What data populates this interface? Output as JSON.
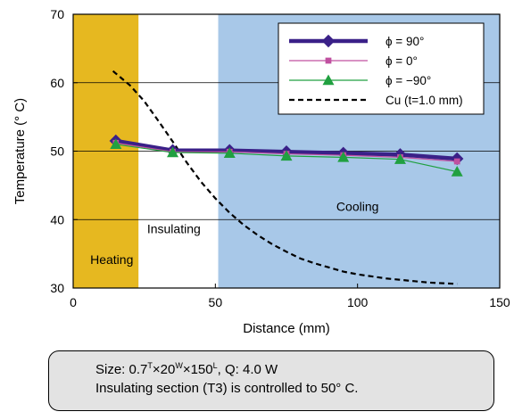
{
  "chart_data": {
    "type": "line",
    "xlabel": "Distance (mm)",
    "ylabel": "Temperature (° C)",
    "xlim": [
      0,
      150
    ],
    "ylim": [
      30,
      70
    ],
    "x_ticks": [
      "0",
      "50",
      "100",
      "150"
    ],
    "y_ticks": [
      "30",
      "40",
      "50",
      "60",
      "70"
    ],
    "grid": "horizontal",
    "legend_position": "top-right",
    "regions": [
      {
        "label": "Heating",
        "x_range": [
          0,
          23
        ],
        "color": "#e6b820"
      },
      {
        "label": "Insulating",
        "x_range": [
          23,
          51
        ],
        "color": "#ffffff"
      },
      {
        "label": "Cooling",
        "x_range": [
          51,
          150
        ],
        "color": "#a8c8e8"
      }
    ],
    "x": [
      15,
      35,
      55,
      75,
      95,
      115,
      135
    ],
    "series": [
      {
        "name": "ϕ = 90°",
        "color": "#3a2088",
        "marker": "diamond",
        "values": [
          51.5,
          50.1,
          50.1,
          49.9,
          49.7,
          49.5,
          48.9
        ]
      },
      {
        "name": "ϕ = 0°",
        "color": "#c050a0",
        "marker": "square",
        "values": [
          51.2,
          49.9,
          49.9,
          49.6,
          49.4,
          49.1,
          48.5
        ]
      },
      {
        "name": "ϕ = −90°",
        "color": "#20a040",
        "marker": "triangle",
        "values": [
          51.0,
          49.8,
          49.7,
          49.3,
          49.1,
          48.8,
          47.0
        ]
      }
    ],
    "reference_curve": {
      "name": "Cu (t=1.0 mm)",
      "color": "#000000",
      "style": "dashed",
      "x": [
        14,
        20,
        25,
        30,
        35,
        40,
        45,
        50,
        55,
        60,
        65,
        70,
        75,
        80,
        85,
        90,
        95,
        100,
        105,
        110,
        115,
        120,
        125,
        130,
        135
      ],
      "y": [
        61.7,
        59.6,
        57.3,
        54.4,
        51.4,
        48.3,
        45.5,
        43.1,
        41.0,
        39.2,
        37.7,
        36.4,
        35.3,
        34.3,
        33.6,
        33.0,
        32.4,
        32.0,
        31.7,
        31.4,
        31.2,
        31.0,
        30.8,
        30.7,
        30.6
      ]
    }
  },
  "note": {
    "size_prefix": "Size: 0.7",
    "size_t": "T",
    "size_mid1": "×20",
    "size_w": "W",
    "size_mid2": "×150",
    "size_l": "L",
    "size_suffix": ", Q: 4.0 W",
    "line2": "Insulating section (T3) is controlled to 50° C."
  }
}
